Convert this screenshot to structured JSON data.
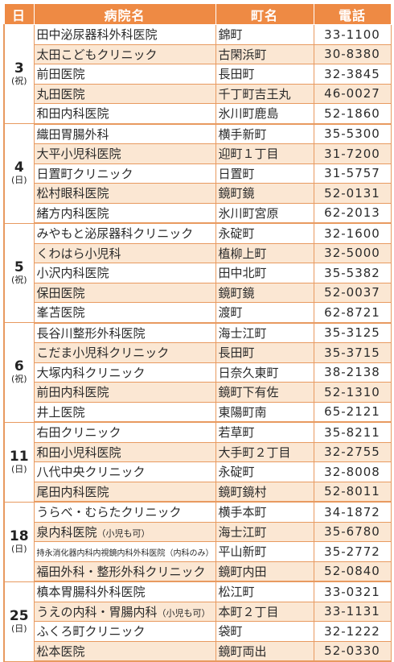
{
  "header": {
    "day": "日",
    "hospital": "病院名",
    "town": "町名",
    "phone": "電話"
  },
  "groups": [
    {
      "day": "3",
      "weekday": "(祝)",
      "rows": [
        {
          "name": "田中泌尿器科外科医院",
          "town": "錦町",
          "tel": "33-1100"
        },
        {
          "name": "太田こどもクリニック",
          "town": "古閑浜町",
          "tel": "30-8380"
        },
        {
          "name": "前田医院",
          "town": "長田町",
          "tel": "32-3845"
        },
        {
          "name": "丸田医院",
          "town": "千丁町吉王丸",
          "tel": "46-0027"
        },
        {
          "name": "和田内科医院",
          "town": "氷川町鹿島",
          "tel": "52-1860"
        }
      ]
    },
    {
      "day": "4",
      "weekday": "(日)",
      "rows": [
        {
          "name": "織田胃腸外科",
          "town": "横手新町",
          "tel": "35-5300"
        },
        {
          "name": "大平小児科医院",
          "town": "迎町１丁目",
          "tel": "31-7200"
        },
        {
          "name": "日置町クリニック",
          "town": "日置町",
          "tel": "31-5757"
        },
        {
          "name": "松村眼科医院",
          "town": "鏡町鏡",
          "tel": "52-0131"
        },
        {
          "name": "緒方内科医院",
          "town": "氷川町宮原",
          "tel": "62-2013"
        }
      ]
    },
    {
      "day": "5",
      "weekday": "(祝)",
      "rows": [
        {
          "name": "みやもと泌尿器科クリニック",
          "town": "永碇町",
          "tel": "32-1600"
        },
        {
          "name": "くわはら小児科",
          "town": "植柳上町",
          "tel": "32-5000"
        },
        {
          "name": "小沢内科医院",
          "town": "田中北町",
          "tel": "35-5382"
        },
        {
          "name": "保田医院",
          "town": "鏡町鏡",
          "tel": "52-0037"
        },
        {
          "name": "峯苫医院",
          "town": "渡町",
          "tel": "62-8721"
        }
      ]
    },
    {
      "day": "6",
      "weekday": "(祝)",
      "rows": [
        {
          "name": "長谷川整形外科医院",
          "town": "海士江町",
          "tel": "35-3125"
        },
        {
          "name": "こだま小児科クリニック",
          "town": "長田町",
          "tel": "35-3715"
        },
        {
          "name": "大塚内科クリニック",
          "town": "日奈久東町",
          "tel": "38-2138"
        },
        {
          "name": "前田内科医院",
          "town": "鏡町下有佐",
          "tel": "52-1310"
        },
        {
          "name": "井上医院",
          "town": "東陽町南",
          "tel": "65-2121"
        }
      ]
    },
    {
      "day": "11",
      "weekday": "(日)",
      "rows": [
        {
          "name": "右田クリニック",
          "town": "若草町",
          "tel": "35-8211"
        },
        {
          "name": "和田小児科医院",
          "town": "大手町２丁目",
          "tel": "32-2755"
        },
        {
          "name": "八代中央クリニック",
          "town": "永碇町",
          "tel": "32-8008"
        },
        {
          "name": "尾田内科医院",
          "town": "鏡町鏡村",
          "tel": "52-8011"
        }
      ]
    },
    {
      "day": "18",
      "weekday": "(日)",
      "rows": [
        {
          "name": "うらべ・むらたクリニック",
          "town": "横手本町",
          "tel": "34-1872"
        },
        {
          "name": "泉内科医院",
          "note": "（小児も可）",
          "town": "海士江町",
          "tel": "35-6780"
        },
        {
          "name": "持永消化器内科内視鏡内科外科医院",
          "note": "（内科のみ）",
          "town": "平山新町",
          "tel": "35-2772"
        },
        {
          "name": "福田外科・整形外科クリニック",
          "town": "鏡町内田",
          "tel": "52-0840"
        }
      ]
    },
    {
      "day": "25",
      "weekday": "(日)",
      "rows": [
        {
          "name": "槙本胃腸科外科医院",
          "town": "松江町",
          "tel": "33-0321"
        },
        {
          "name": "うえの内科・胃腸内科",
          "note": "（小児も可）",
          "town": "本町２丁目",
          "tel": "33-1131"
        },
        {
          "name": "ふくろ町クリニック",
          "town": "袋町",
          "tel": "32-1222"
        },
        {
          "name": "松本医院",
          "town": "鏡町両出",
          "tel": "52-0330"
        }
      ]
    }
  ]
}
